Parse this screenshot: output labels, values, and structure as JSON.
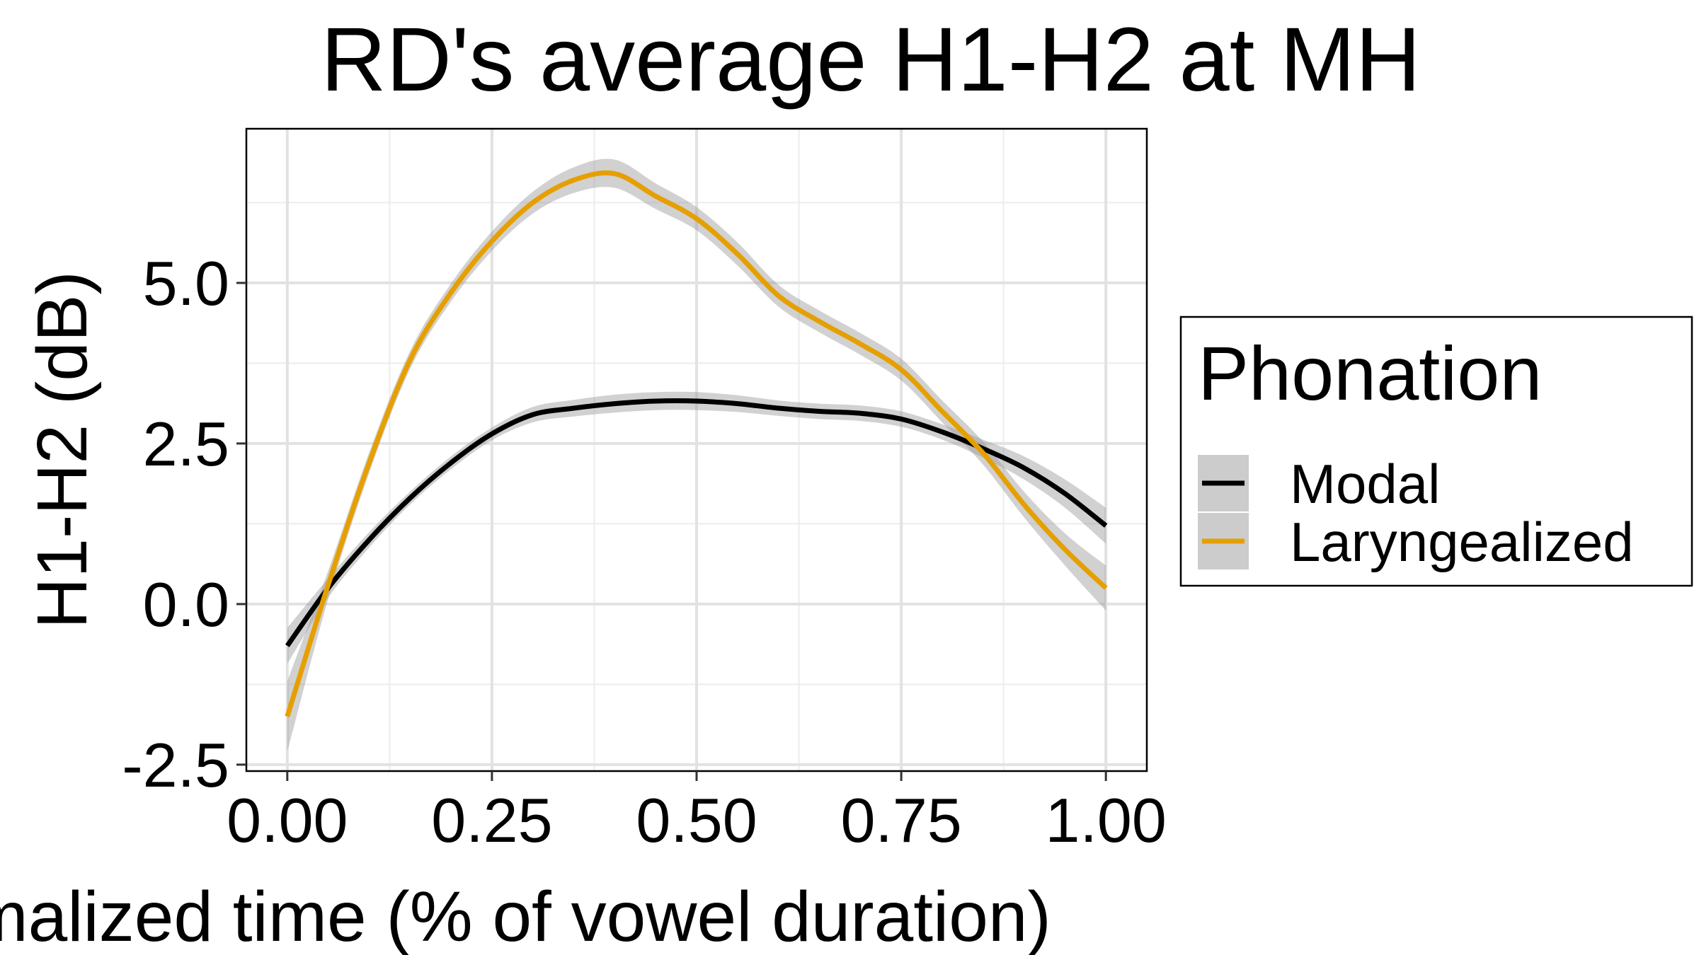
{
  "chart_data": {
    "type": "line",
    "title": "RD's average H1-H2 at MH",
    "xlabel": "Normalized time (% of vowel duration)",
    "ylabel": "H1-H2 (dB)",
    "xlim": [
      -0.05,
      1.05
    ],
    "ylim": [
      -2.6,
      7.4
    ],
    "x_ticks": [
      0.0,
      0.25,
      0.5,
      0.75,
      1.0
    ],
    "x_tick_labels": [
      "0.00",
      "0.25",
      "0.50",
      "0.75",
      "1.00"
    ],
    "y_ticks": [
      -2.5,
      0.0,
      2.5,
      5.0
    ],
    "y_tick_labels": [
      "-2.5",
      "0.0",
      "2.5",
      "5.0"
    ],
    "grid": true,
    "confidence_band": true,
    "legend": {
      "title": "Phonation",
      "position": "right"
    },
    "series": [
      {
        "name": "Modal",
        "color": "#000000",
        "x": [
          0.0,
          0.05,
          0.1,
          0.15,
          0.2,
          0.25,
          0.3,
          0.35,
          0.4,
          0.45,
          0.5,
          0.55,
          0.6,
          0.65,
          0.7,
          0.75,
          0.8,
          0.85,
          0.9,
          0.95,
          1.0
        ],
        "y": [
          -0.65,
          0.25,
          1.0,
          1.65,
          2.2,
          2.65,
          2.95,
          3.05,
          3.12,
          3.16,
          3.16,
          3.12,
          3.05,
          3.0,
          2.97,
          2.88,
          2.68,
          2.42,
          2.12,
          1.72,
          1.22
        ],
        "band": [
          0.28,
          0.15,
          0.12,
          0.1,
          0.1,
          0.1,
          0.12,
          0.13,
          0.14,
          0.14,
          0.14,
          0.13,
          0.12,
          0.12,
          0.12,
          0.12,
          0.12,
          0.14,
          0.18,
          0.22,
          0.28
        ]
      },
      {
        "name": "Laryngealized",
        "color": "#E69F00",
        "x": [
          0.0,
          0.05,
          0.1,
          0.15,
          0.2,
          0.25,
          0.3,
          0.35,
          0.4,
          0.45,
          0.5,
          0.55,
          0.6,
          0.65,
          0.7,
          0.75,
          0.8,
          0.85,
          0.9,
          0.95,
          1.0
        ],
        "y": [
          -1.75,
          0.3,
          2.2,
          3.8,
          4.85,
          5.65,
          6.25,
          6.6,
          6.7,
          6.35,
          6.0,
          5.45,
          4.8,
          4.4,
          4.05,
          3.65,
          3.0,
          2.35,
          1.55,
          0.85,
          0.25
        ],
        "band": [
          0.55,
          0.22,
          0.16,
          0.14,
          0.14,
          0.15,
          0.17,
          0.2,
          0.22,
          0.2,
          0.18,
          0.18,
          0.17,
          0.17,
          0.17,
          0.17,
          0.17,
          0.18,
          0.2,
          0.25,
          0.35
        ]
      }
    ]
  }
}
